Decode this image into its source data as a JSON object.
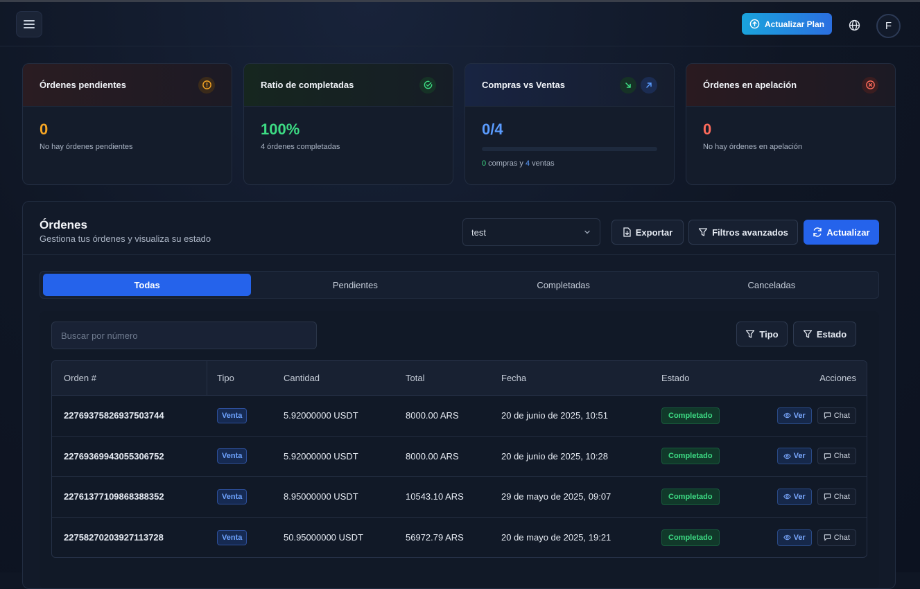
{
  "topbar": {
    "upgrade_label": "Actualizar Plan",
    "avatar_initial": "F"
  },
  "cards": [
    {
      "title": "Órdenes pendientes",
      "value": "0",
      "sub": "No hay órdenes pendientes",
      "color": "#f5a524"
    },
    {
      "title": "Ratio de completadas",
      "value": "100%",
      "sub": "4 órdenes completadas",
      "color": "#3ddc84"
    },
    {
      "title": "Compras vs Ventas",
      "value": "0/4",
      "buys": "0",
      "buys_text": " compras y ",
      "sells": "4",
      "sells_text": " ventas",
      "color": "#5b9cff",
      "progress": 0
    },
    {
      "title": "Órdenes en apelación",
      "value": "0",
      "sub": "No hay órdenes en apelación",
      "color": "#ff6b5b"
    }
  ],
  "orders": {
    "title": "Órdenes",
    "subtitle": "Gestiona tus órdenes y visualiza su estado",
    "select_value": "test",
    "export_label": "Exportar",
    "filters_label": "Filtros avanzados",
    "refresh_label": "Actualizar",
    "tabs": [
      "Todas",
      "Pendientes",
      "Completadas",
      "Canceladas"
    ],
    "active_tab": 0,
    "search_placeholder": "Buscar por número",
    "type_filter_label": "Tipo",
    "status_filter_label": "Estado",
    "columns": [
      "Orden #",
      "Tipo",
      "Cantidad",
      "Total",
      "Fecha",
      "Estado",
      "Acciones"
    ],
    "rows": [
      {
        "id": "22769375826937503744",
        "type": "Venta",
        "amount": "5.92000000 USDT",
        "total": "8000.00 ARS",
        "date": "20 de junio de 2025, 10:51",
        "status": "Completado"
      },
      {
        "id": "22769369943055306752",
        "type": "Venta",
        "amount": "5.92000000 USDT",
        "total": "8000.00 ARS",
        "date": "20 de junio de 2025, 10:28",
        "status": "Completado"
      },
      {
        "id": "22761377109868388352",
        "type": "Venta",
        "amount": "8.95000000 USDT",
        "total": "10543.10 ARS",
        "date": "29 de mayo de 2025, 09:07",
        "status": "Completado"
      },
      {
        "id": "22758270203927113728",
        "type": "Venta",
        "amount": "50.95000000 USDT",
        "total": "56972.79 ARS",
        "date": "20 de mayo de 2025, 19:21",
        "status": "Completado"
      }
    ],
    "view_label": "Ver",
    "chat_label": "Chat"
  }
}
